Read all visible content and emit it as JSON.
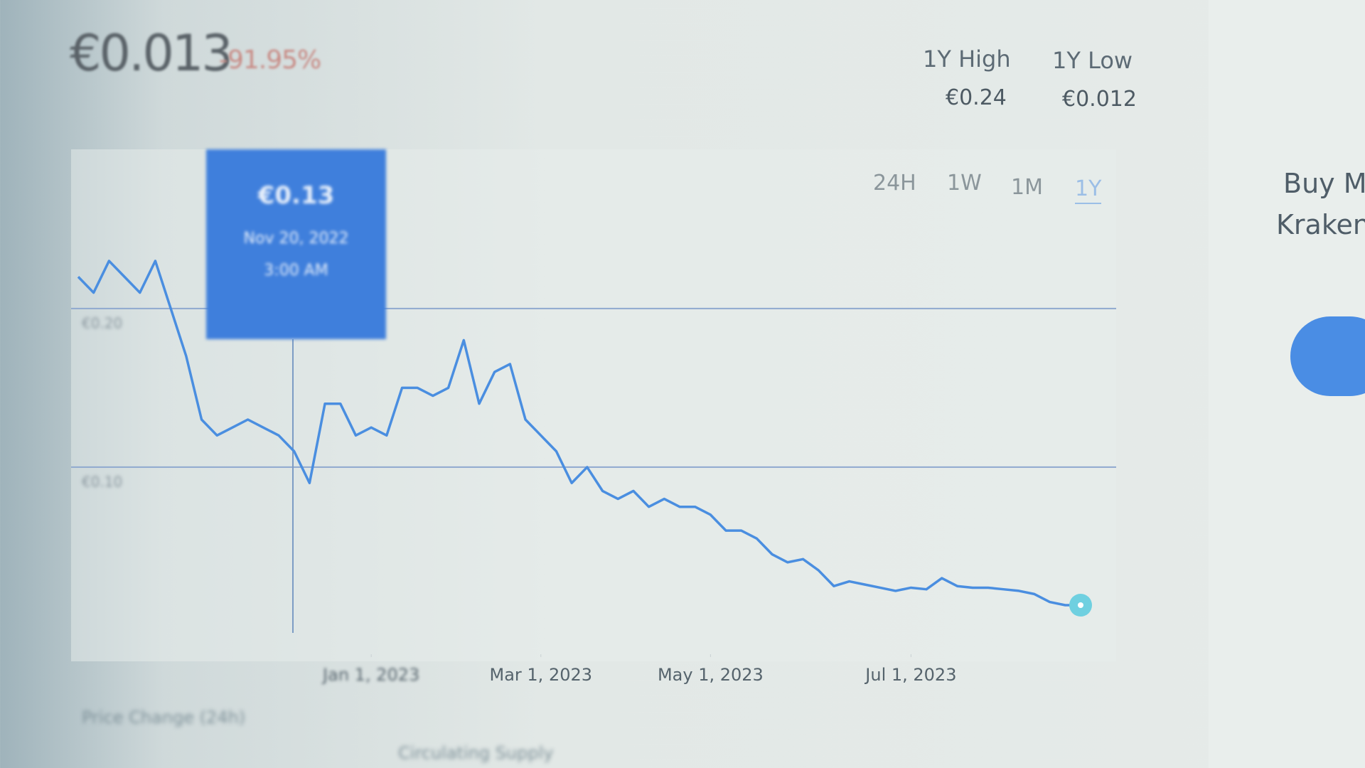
{
  "header": {
    "price": "€0.013",
    "change": "-91.95%",
    "stats": [
      {
        "label": "1Y High",
        "value": "€0.24"
      },
      {
        "label": "1Y Low",
        "value": "€0.012"
      }
    ]
  },
  "ranges": [
    "24H",
    "1W",
    "1M",
    "1Y"
  ],
  "tooltip": {
    "price": "€0.13",
    "date": "Nov 20, 2022",
    "time": "3:00 AM"
  },
  "sidebar": {
    "line1": "Buy M",
    "line2": "Kraken"
  },
  "footer": [
    "Price Change (24h)",
    "Circulating Supply"
  ],
  "chart_data": {
    "type": "line",
    "color": "#4a8ee0",
    "values": [
      0.22,
      0.21,
      0.23,
      0.22,
      0.21,
      0.23,
      0.2,
      0.17,
      0.13,
      0.12,
      0.125,
      0.13,
      0.125,
      0.12,
      0.11,
      0.09,
      0.14,
      0.14,
      0.12,
      0.125,
      0.12,
      0.15,
      0.15,
      0.145,
      0.15,
      0.18,
      0.14,
      0.16,
      0.165,
      0.13,
      0.12,
      0.11,
      0.09,
      0.1,
      0.085,
      0.08,
      0.085,
      0.075,
      0.08,
      0.075,
      0.075,
      0.07,
      0.06,
      0.06,
      0.055,
      0.045,
      0.04,
      0.042,
      0.035,
      0.025,
      0.028,
      0.026,
      0.024,
      0.022,
      0.024,
      0.023,
      0.03,
      0.025,
      0.024,
      0.024,
      0.023,
      0.022,
      0.02,
      0.015,
      0.013,
      0.013
    ],
    "ylim": [
      0,
      0.26
    ],
    "yticks": [
      {
        "value": 0.1,
        "label": "€0.10"
      },
      {
        "value": 0.2,
        "label": "€0.20"
      }
    ],
    "xticks": [
      {
        "value": 19,
        "label": "Jan 1, 2023"
      },
      {
        "value": 30,
        "label": "Mar 1, 2023"
      },
      {
        "value": 41,
        "label": "May 1, 2023"
      },
      {
        "value": 54,
        "label": "Jul 1, 2023"
      }
    ],
    "grid": true
  }
}
